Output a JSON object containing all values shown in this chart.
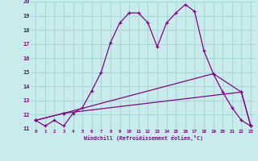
{
  "title": "",
  "xlabel": "Windchill (Refroidissement éolien,°C)",
  "bg_color": "#c8ecec",
  "grid_color": "#a8d8d8",
  "line_color": "#880088",
  "xlim": [
    -0.5,
    23.5
  ],
  "ylim": [
    11,
    20
  ],
  "xticks": [
    0,
    1,
    2,
    3,
    4,
    5,
    6,
    7,
    8,
    9,
    10,
    11,
    12,
    13,
    14,
    15,
    16,
    17,
    18,
    19,
    20,
    21,
    22,
    23
  ],
  "yticks": [
    11,
    12,
    13,
    14,
    15,
    16,
    17,
    18,
    19,
    20
  ],
  "line1_x": [
    0,
    1,
    2,
    3,
    4,
    5,
    6,
    7,
    8,
    9,
    10,
    11,
    12,
    13,
    14,
    15,
    16,
    17,
    18,
    19,
    20,
    21,
    22,
    23
  ],
  "line1_y": [
    11.6,
    11.2,
    11.6,
    11.2,
    12.1,
    12.5,
    13.7,
    15.0,
    17.1,
    18.5,
    19.2,
    19.2,
    18.5,
    16.8,
    18.5,
    19.2,
    19.8,
    19.3,
    16.5,
    14.9,
    13.6,
    12.5,
    11.6,
    11.2
  ],
  "line2_x": [
    0,
    3,
    22,
    23
  ],
  "line2_y": [
    11.6,
    12.1,
    13.6,
    11.2
  ],
  "line3_x": [
    0,
    3,
    19,
    22,
    23
  ],
  "line3_y": [
    11.6,
    12.1,
    14.9,
    13.6,
    11.2
  ],
  "marker": "+"
}
